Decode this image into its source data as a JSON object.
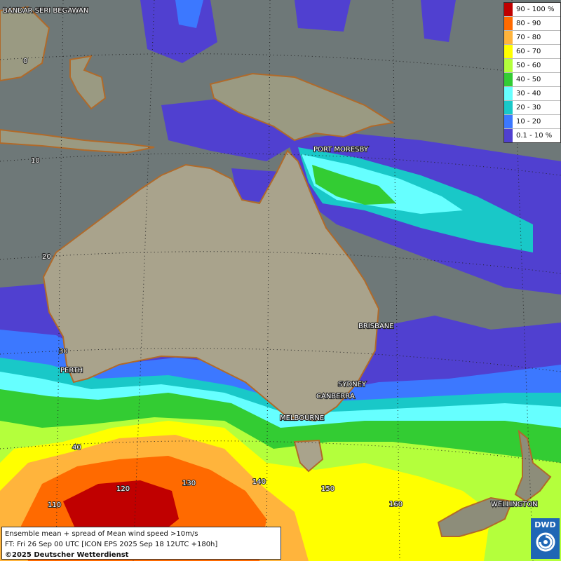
{
  "legend": [
    {
      "label": "90 - 100 %",
      "color": "#c00000"
    },
    {
      "label": "80 - 90",
      "color": "#ff6a00"
    },
    {
      "label": "70 - 80",
      "color": "#ffb43c"
    },
    {
      "label": "60 - 70",
      "color": "#ffff00"
    },
    {
      "label": "50 - 60",
      "color": "#b4ff3c"
    },
    {
      "label": "40 - 50",
      "color": "#33cc33"
    },
    {
      "label": "30 - 40",
      "color": "#66ffff"
    },
    {
      "label": "20 - 30",
      "color": "#19c8c8"
    },
    {
      "label": "10 - 20",
      "color": "#3c78ff"
    },
    {
      "label": "0.1 - 10 %",
      "color": "#5040d0"
    }
  ],
  "cities": {
    "bandar": "BANDAR SERI BEGAWAN",
    "port_moresby": "PORT MORESBY",
    "brisbane": "BRISBANE",
    "perth": "PERTH",
    "sydney": "SYDNEY",
    "canberra": "CANBERRA",
    "melbourne": "MELBOURNE",
    "wellington": "WELLINGTON"
  },
  "grid_labels": {
    "lat0": "0",
    "lat10": "10",
    "lat20": "20",
    "lat30": "30",
    "lat40": "40",
    "lon110": "110",
    "lon120": "120",
    "lon130": "130",
    "lon140": "140",
    "lon150": "150",
    "lon160": "160"
  },
  "info": {
    "line1": "Ensemble mean + spread of Mean wind speed >10m/s",
    "line2": "FT: Fri 26 Sep 00 UTC [ICON EPS 2025 Sep 18 12UTC +180h]",
    "copyright": "©2025 Deutscher Wetterdienst"
  },
  "logo": {
    "text": "DWD"
  }
}
